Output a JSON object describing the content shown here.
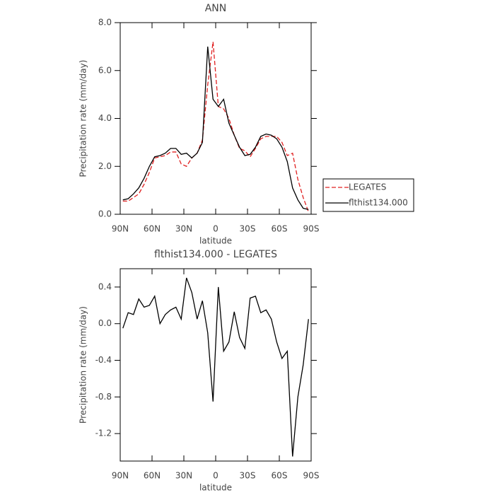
{
  "chart_data": [
    {
      "type": "line",
      "title": "ANN",
      "xlabel": "latitude",
      "ylabel": "Precipitation rate (mm/day)",
      "x": [
        87.5,
        82.5,
        77.5,
        72.5,
        67.5,
        62.5,
        57.5,
        52.5,
        47.5,
        42.5,
        37.5,
        32.5,
        27.5,
        22.5,
        17.5,
        12.5,
        7.5,
        2.5,
        -2.5,
        -7.5,
        -12.5,
        -17.5,
        -22.5,
        -27.5,
        -32.5,
        -37.5,
        -42.5,
        -47.5,
        -52.5,
        -57.5,
        -62.5,
        -67.5,
        -72.5,
        -77.5,
        -82.5,
        -87.5
      ],
      "series": [
        {
          "name": "LEGATES",
          "color": "#e02020",
          "dashed": true,
          "values": [
            0.55,
            0.55,
            0.7,
            0.85,
            1.25,
            1.75,
            2.35,
            2.4,
            2.45,
            2.6,
            2.6,
            2.1,
            2.0,
            2.35,
            2.55,
            3.1,
            5.4,
            7.2,
            4.5,
            4.4,
            4.0,
            3.3,
            2.75,
            2.65,
            2.4,
            2.75,
            3.15,
            3.25,
            3.25,
            3.25,
            3.0,
            2.45,
            2.55,
            1.45,
            0.7,
            0.1
          ]
        },
        {
          "name": "flthist134.000",
          "color": "#000000",
          "dashed": false,
          "values": [
            0.6,
            0.65,
            0.85,
            1.1,
            1.5,
            2.0,
            2.4,
            2.45,
            2.55,
            2.75,
            2.75,
            2.5,
            2.55,
            2.35,
            2.55,
            3.0,
            7.0,
            4.8,
            4.5,
            4.8,
            3.8,
            3.3,
            2.8,
            2.45,
            2.5,
            2.8,
            3.25,
            3.35,
            3.3,
            3.15,
            2.8,
            2.2,
            1.1,
            0.6,
            0.25,
            0.2
          ]
        }
      ],
      "xlim": [
        90,
        -90
      ],
      "xticks": [
        {
          "value": 90,
          "label": "90N"
        },
        {
          "value": 60,
          "label": "60N"
        },
        {
          "value": 30,
          "label": "30N"
        },
        0,
        {
          "value": -30,
          "label": "30S"
        },
        {
          "value": -60,
          "label": "60S"
        },
        {
          "value": -90,
          "label": "90S"
        }
      ],
      "ylim": [
        0,
        8
      ],
      "yticks": [
        {
          "value": 0,
          "label": "0.0"
        },
        {
          "value": 2,
          "label": "2.0"
        },
        {
          "value": 4,
          "label": "4.0"
        },
        {
          "value": 6,
          "label": "6.0"
        },
        {
          "value": 8,
          "label": "8.0"
        }
      ],
      "legend": "right"
    },
    {
      "type": "line",
      "title": "flthist134.000 - LEGATES",
      "xlabel": "latitude",
      "ylabel": "Precipitation rate (mm/day)",
      "x": [
        87.5,
        82.5,
        77.5,
        72.5,
        67.5,
        62.5,
        57.5,
        52.5,
        47.5,
        42.5,
        37.5,
        32.5,
        27.5,
        22.5,
        17.5,
        12.5,
        7.5,
        2.5,
        -2.5,
        -7.5,
        -12.5,
        -17.5,
        -22.5,
        -27.5,
        -32.5,
        -37.5,
        -42.5,
        -47.5,
        -52.5,
        -57.5,
        -62.5,
        -67.5,
        -72.5,
        -77.5,
        -82.5,
        -87.5
      ],
      "series": [
        {
          "color": "#000000",
          "dashed": false,
          "values": [
            -0.05,
            0.12,
            0.1,
            0.27,
            0.18,
            0.2,
            0.3,
            0.0,
            0.1,
            0.15,
            0.18,
            0.05,
            0.5,
            0.34,
            0.05,
            0.25,
            -0.1,
            -0.85,
            0.4,
            -0.3,
            -0.2,
            0.13,
            -0.15,
            -0.27,
            0.28,
            0.3,
            0.12,
            0.15,
            0.05,
            -0.2,
            -0.38,
            -0.3,
            -1.45,
            -0.8,
            -0.45,
            0.05
          ]
        }
      ],
      "xlim": [
        90,
        -90
      ],
      "xticks": [
        {
          "value": 90,
          "label": "90N"
        },
        {
          "value": 60,
          "label": "60N"
        },
        {
          "value": 30,
          "label": "30N"
        },
        0,
        {
          "value": -30,
          "label": "30S"
        },
        {
          "value": -60,
          "label": "60S"
        },
        {
          "value": -90,
          "label": "90S"
        }
      ],
      "ylim": [
        -1.5,
        0.6
      ],
      "yticks": [
        {
          "value": 0.4,
          "label": "0.4"
        },
        {
          "value": 0,
          "label": "0.0"
        },
        {
          "value": -0.4,
          "label": "-0.4"
        },
        {
          "value": -0.8,
          "label": "-0.8"
        },
        {
          "value": -1.2,
          "label": "-1.2"
        }
      ]
    }
  ]
}
